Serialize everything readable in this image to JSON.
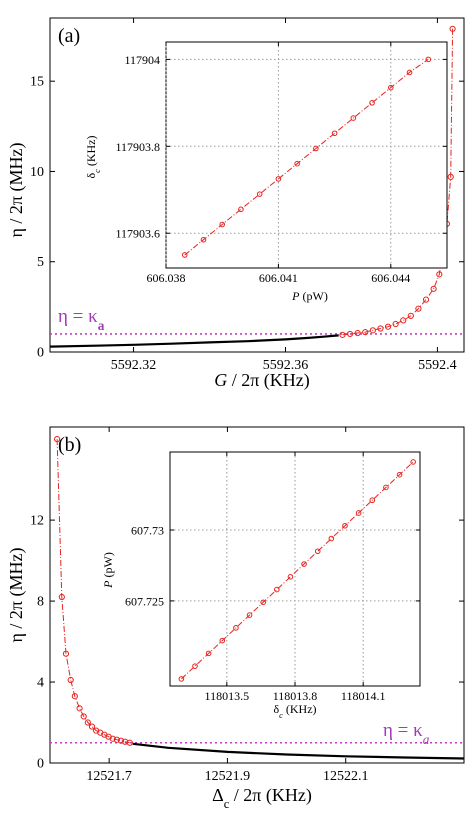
{
  "colors": {
    "axis": "#000000",
    "curve": "#000000",
    "points": "#e8231f",
    "threshold_line": "#c040c0",
    "grid": "#999999"
  },
  "chart_data": [
    {
      "id": "a_main",
      "type": "line",
      "panel_label": "(a)",
      "xlabel": "G / 2π  (KHz)",
      "ylabel": "η / 2π  (MHz)",
      "x_ticks": [
        "5592.32",
        "5592.36",
        "5592.4"
      ],
      "y_ticks": [
        "0",
        "5",
        "10",
        "15"
      ],
      "xlim": [
        5592.298,
        5592.407
      ],
      "ylim": [
        0,
        18.5
      ],
      "threshold": {
        "label": "η = κa",
        "value": 1.0
      },
      "series": [
        {
          "style": "solid-black",
          "x": [
            5592.298,
            5592.31,
            5592.32,
            5592.33,
            5592.34,
            5592.35,
            5592.36,
            5592.366,
            5592.37,
            5592.374
          ],
          "y": [
            0.3,
            0.35,
            0.4,
            0.46,
            0.53,
            0.6,
            0.7,
            0.78,
            0.85,
            0.92
          ]
        },
        {
          "style": "red-dashdot-circles",
          "x": [
            5592.375,
            5592.377,
            5592.379,
            5592.381,
            5592.383,
            5592.385,
            5592.387,
            5592.389,
            5592.391,
            5592.393,
            5592.395,
            5592.397,
            5592.399,
            5592.4005,
            5592.4015,
            5592.4025,
            5592.4035,
            5592.404
          ],
          "y": [
            0.95,
            1.0,
            1.05,
            1.1,
            1.2,
            1.3,
            1.4,
            1.55,
            1.75,
            2.0,
            2.4,
            2.9,
            3.5,
            4.3,
            5.6,
            7.1,
            9.7,
            17.9
          ]
        }
      ]
    },
    {
      "id": "a_inset",
      "type": "line",
      "xlabel": "P (pW)",
      "ylabel": "δc (KHz)",
      "x_ticks": [
        "606.038",
        "606.041",
        "606.044"
      ],
      "y_ticks": [
        "117903.6",
        "117903.8",
        "117904"
      ],
      "xlim": [
        606.038,
        606.0455
      ],
      "ylim": [
        117903.52,
        117904.04
      ],
      "series": [
        {
          "style": "red-dashdot-circles",
          "x": [
            606.0385,
            606.039,
            606.0395,
            606.04,
            606.0405,
            606.041,
            606.0415,
            606.042,
            606.0425,
            606.043,
            606.0435,
            606.044,
            606.0445,
            606.045
          ],
          "y": [
            117903.55,
            117903.585,
            117903.62,
            117903.655,
            117903.69,
            117903.725,
            117903.76,
            117903.795,
            117903.83,
            117903.865,
            117903.9,
            117903.935,
            117903.97,
            117904.0
          ]
        }
      ]
    },
    {
      "id": "b_main",
      "type": "line",
      "panel_label": "(b)",
      "xlabel": "Δc / 2π  (KHz)",
      "ylabel": "η / 2π  (MHz)",
      "x_ticks": [
        "12521.7",
        "12521.9",
        "12522.1"
      ],
      "y_ticks": [
        "0",
        "4",
        "8",
        "12"
      ],
      "xlim": [
        12521.6,
        12522.3
      ],
      "ylim": [
        0,
        16.6
      ],
      "threshold": {
        "label": "η = κa",
        "value": 1.0
      },
      "series": [
        {
          "style": "solid-black",
          "x": [
            12521.74,
            12521.8,
            12521.9,
            12522.0,
            12522.1,
            12522.2,
            12522.3
          ],
          "y": [
            0.95,
            0.75,
            0.55,
            0.42,
            0.33,
            0.27,
            0.22
          ]
        },
        {
          "style": "red-dashdot-circles",
          "x": [
            12521.612,
            12521.62,
            12521.627,
            12521.635,
            12521.642,
            12521.65,
            12521.657,
            12521.664,
            12521.671,
            12521.678,
            12521.685,
            12521.692,
            12521.699,
            12521.706,
            12521.713,
            12521.72,
            12521.727,
            12521.735
          ],
          "y": [
            16.0,
            8.2,
            5.4,
            4.1,
            3.3,
            2.7,
            2.3,
            2.0,
            1.8,
            1.6,
            1.5,
            1.4,
            1.3,
            1.2,
            1.15,
            1.1,
            1.05,
            1.0
          ]
        }
      ]
    },
    {
      "id": "b_inset",
      "type": "line",
      "xlabel": "δc (KHz)",
      "ylabel": "P (pW)",
      "x_ticks": [
        "118013.5",
        "118013.8",
        "118014.1"
      ],
      "y_ticks": [
        "607.725",
        "607.73"
      ],
      "xlim": [
        118013.25,
        118014.35
      ],
      "ylim": [
        607.719,
        607.7355
      ],
      "series": [
        {
          "style": "red-dashdot-circles",
          "x": [
            118013.3,
            118013.36,
            118013.42,
            118013.48,
            118013.54,
            118013.6,
            118013.66,
            118013.72,
            118013.78,
            118013.84,
            118013.9,
            118013.96,
            118014.02,
            118014.08,
            118014.14,
            118014.2,
            118014.26,
            118014.32
          ],
          "y": [
            607.7195,
            607.7204,
            607.7213,
            607.7222,
            607.7231,
            607.724,
            607.7249,
            607.7258,
            607.7267,
            607.7276,
            607.7285,
            607.7294,
            607.7303,
            607.7312,
            607.7321,
            607.733,
            607.7339,
            607.7348
          ]
        }
      ]
    }
  ]
}
